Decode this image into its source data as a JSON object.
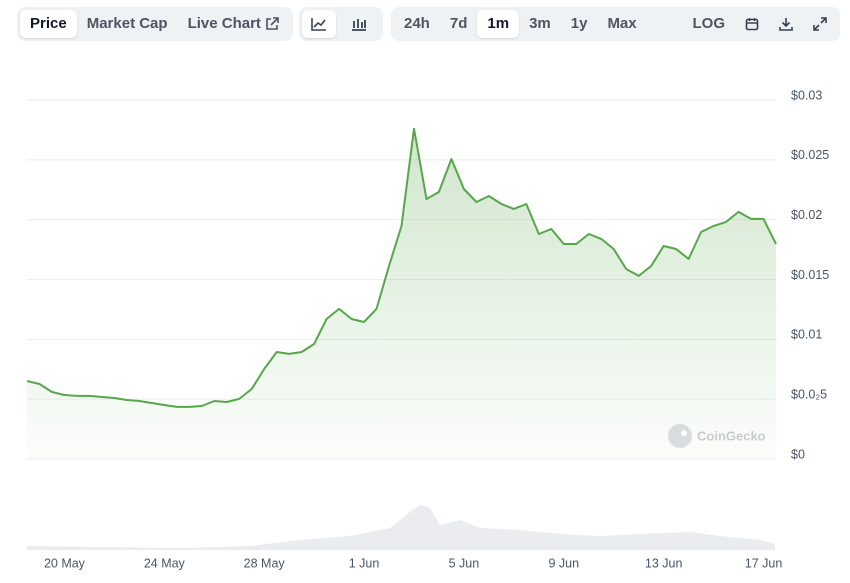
{
  "toolbar": {
    "tabs": [
      "Price",
      "Market Cap",
      "Live Chart"
    ],
    "ranges": [
      "24h",
      "7d",
      "1m",
      "3m",
      "1y",
      "Max"
    ],
    "scale": "LOG",
    "active_tab": 0,
    "active_range": 2
  },
  "watermark": "CoinGecko",
  "chart_data": {
    "type": "line",
    "categories": [
      null,
      null,
      null,
      "20 May",
      null,
      null,
      null,
      null,
      null,
      null,
      null,
      "24 May",
      null,
      null,
      null,
      null,
      null,
      null,
      null,
      "28 May",
      null,
      null,
      null,
      null,
      null,
      null,
      null,
      "1 Jun",
      null,
      null,
      null,
      null,
      null,
      null,
      null,
      "5 Jun",
      null,
      null,
      null,
      null,
      null,
      null,
      null,
      "9 Jun",
      null,
      null,
      null,
      null,
      null,
      null,
      null,
      "13 Jun",
      null,
      null,
      null,
      null,
      null,
      null,
      null,
      "17 Jun",
      null
    ],
    "series": [
      {
        "name": "Price",
        "color": "#57a64a",
        "values": [
          0.00652,
          0.00627,
          0.0056,
          0.00535,
          0.00527,
          0.00527,
          0.00518,
          0.0051,
          0.00493,
          0.00485,
          0.00468,
          0.00451,
          0.00435,
          0.00435,
          0.00443,
          0.00485,
          0.00476,
          0.00502,
          0.00585,
          0.00752,
          0.00894,
          0.00878,
          0.00894,
          0.00961,
          0.0117,
          0.01254,
          0.0117,
          0.01145,
          0.01254,
          0.01613,
          0.01947,
          0.0276,
          0.02173,
          0.02231,
          0.02507,
          0.02256,
          0.02148,
          0.02198,
          0.02131,
          0.0209,
          0.02131,
          0.0188,
          0.01922,
          0.01797,
          0.01797,
          0.0188,
          0.01839,
          0.01755,
          0.01588,
          0.0153,
          0.01613,
          0.0178,
          0.01755,
          0.01672,
          0.01897,
          0.01947,
          0.01981,
          0.02065,
          0.02006,
          0.02006,
          0.01797
        ]
      }
    ],
    "ylim": [
      0,
      0.03
    ],
    "yticks": [
      {
        "value": 0,
        "label": "$0"
      },
      {
        "value": 0.005,
        "label": "$0.0₂5"
      },
      {
        "value": 0.01,
        "label": "$0.01"
      },
      {
        "value": 0.015,
        "label": "$0.015"
      },
      {
        "value": 0.02,
        "label": "$0.02"
      },
      {
        "value": 0.025,
        "label": "$0.025"
      },
      {
        "value": 0.03,
        "label": "$0.03"
      }
    ],
    "grid": true
  }
}
